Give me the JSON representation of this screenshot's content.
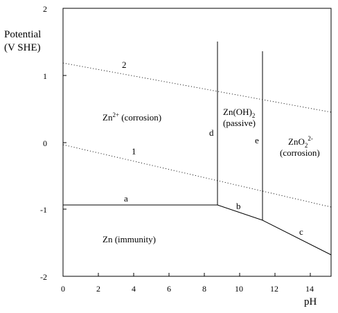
{
  "axes": {
    "y_title_line1": "Potential",
    "y_title_line2": "(V SHE)",
    "x_title": "pH",
    "x_ticks": [
      "0",
      "2",
      "4",
      "6",
      "8",
      "10",
      "12",
      "14"
    ],
    "y_ticks": [
      "2",
      "1",
      "0",
      "-1",
      "-2"
    ],
    "xlim": [
      0,
      14.5
    ],
    "ylim": [
      -2,
      2
    ]
  },
  "regions": {
    "zn2_main": "Zn",
    "zn2_sup": "2+",
    "zn2_suffix": " (corrosion)",
    "znoh2_main": "Zn(OH)",
    "znoh2_sub": "2",
    "znoh2_sub2": "(passive)",
    "zno2_main": "ZnO",
    "zno2_sub": "2",
    "zno2_sup": "2-",
    "zno2_sub2": "(corrosion)",
    "zn_immunity": "Zn (immunity)"
  },
  "line_labels": {
    "a": "a",
    "b": "b",
    "c": "c",
    "d": "d",
    "e": "e",
    "one": "1",
    "two": "2"
  },
  "chart_data": {
    "type": "diagram",
    "boundaries": [
      {
        "name": "a",
        "style": "solid",
        "points": [
          [
            0,
            -0.92
          ],
          [
            8.7,
            -0.92
          ]
        ]
      },
      {
        "name": "b",
        "style": "solid",
        "points": [
          [
            8.7,
            -0.92
          ],
          [
            10.8,
            -1.15
          ]
        ]
      },
      {
        "name": "c",
        "style": "solid",
        "points": [
          [
            10.8,
            -1.15
          ],
          [
            14.5,
            -1.65
          ]
        ]
      },
      {
        "name": "d",
        "style": "solid",
        "points": [
          [
            8.7,
            -0.92
          ],
          [
            8.7,
            1.55
          ]
        ]
      },
      {
        "name": "e",
        "style": "solid",
        "points": [
          [
            10.8,
            -1.15
          ],
          [
            10.8,
            1.4
          ]
        ]
      },
      {
        "name": "1",
        "style": "dotted",
        "points": [
          [
            0,
            0
          ],
          [
            14.5,
            -0.92
          ]
        ]
      },
      {
        "name": "2",
        "style": "dotted",
        "points": [
          [
            0,
            1.2
          ],
          [
            14.5,
            0.47
          ]
        ]
      }
    ]
  }
}
